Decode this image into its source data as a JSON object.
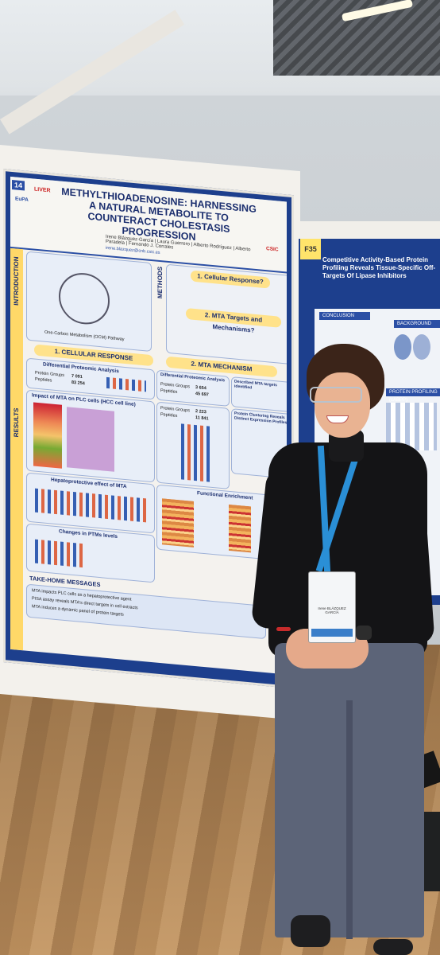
{
  "poster_left": {
    "number": "14",
    "logos": [
      "EuPA",
      "LIVER"
    ],
    "title": "METHYLTHIOADENOSINE: HARNESSING A NATURAL METABOLITE TO COUNTERACT CHOLESTASIS PROGRESSION",
    "authors": "Irene Blázquez-García | Laura Guerrero | Alberto Rodríguez | Alberto Paradela | Fernando J. Corrales",
    "email": "irene.blazquez@cnb.csic.es",
    "institution": "CSIC",
    "sections": {
      "introduction": "INTRODUCTION",
      "methods": "METHODS",
      "results": "RESULTS"
    },
    "methods_steps": [
      "1. Cellular Response?",
      "2. MTA Targets and Mechanisms?"
    ],
    "intro_caption": "One-Carbon Metabolism (OCM) Pathway",
    "results_headers": [
      "1. CELLULAR RESPONSE",
      "2. MTA MECHANISM"
    ],
    "subpanels": [
      "Differential Proteomic Analysis",
      "Differential Proteomic Analysis",
      "Described MTA targets identified",
      "Impact of MTA on PLC cells (HCC cell line)",
      "Protein Clustering Reveals Distinct Expression Profiles",
      "Hepatoprotective effect of MTA",
      "Functional Enrichment",
      "Changes in PTMs levels"
    ],
    "stats": [
      {
        "label": "Protein Groups",
        "value": "7 091"
      },
      {
        "label": "Peptides",
        "value": "83 254"
      },
      {
        "label": "Protein Groups",
        "value": "3 654"
      },
      {
        "label": "Peptides",
        "value": "45 697"
      },
      {
        "label": "Protein Groups",
        "value": "2 223"
      },
      {
        "label": "Peptides",
        "value": "11 841"
      }
    ],
    "take_home_title": "TAKE-HOME MESSAGES",
    "take_home": [
      "MTA impacts PLC cells as a hepatoprotective agent",
      "PISA assay reveals MTA's direct targets in cell extracts",
      "MTA induces a dynamic panel of protein targets"
    ]
  },
  "poster_right": {
    "tag": "F35",
    "title": "Competitive Activity-Based Protein Profiling Reveals Tissue-Specific Off-Targets Of Lipase Inhibitors",
    "sections": [
      "CONCLUSION",
      "BACKGROUND",
      "PROTEIN PROFILING (cABPP)"
    ]
  },
  "badge": {
    "name": "Irene BLÁZQUEZ GARCÍA",
    "org": "CNB-CSIC"
  }
}
